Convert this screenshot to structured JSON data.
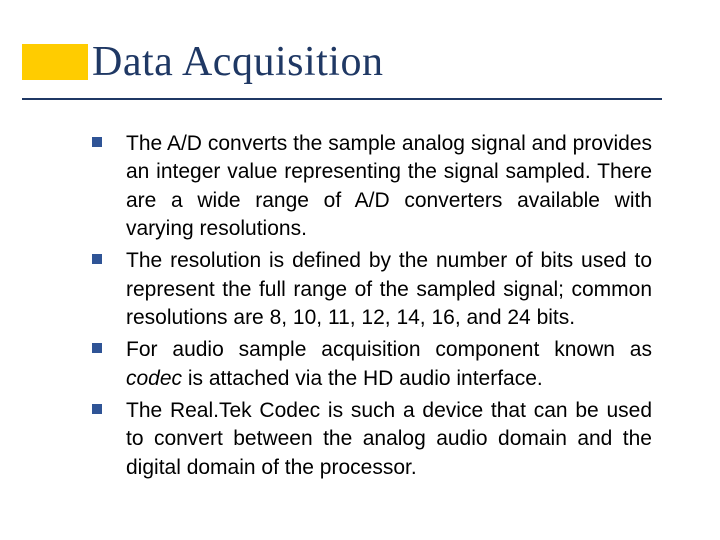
{
  "title": {
    "text": "Data Acquisition",
    "style": "font-size:42px; color:#1f3864;"
  },
  "styling": {
    "accent_block_style": "background:#ffcc00;",
    "underline_style": "background:#1f3864;",
    "bullet_style": "background:#2f5496;"
  },
  "body": {
    "text_style": "font-size:21px; color:#000000;",
    "items": [
      {
        "text": "The A/D converts the sample analog signal and provides an integer value representing the signal sampled. There are a wide range of A/D converters available with varying resolutions."
      },
      {
        "text": "The resolution is defined by the number of bits used to represent the full range of the sampled signal; common resolutions are 8, 10, 11, 12, 14, 16, and 24 bits."
      },
      {
        "text_pre": "For audio sample acquisition component known as ",
        "text_em": "codec",
        "text_post": " is attached via the HD audio interface."
      },
      {
        "text": "The Real.Tek Codec is such a device that can be used to convert between the analog audio domain and the digital domain of the processor."
      }
    ]
  }
}
